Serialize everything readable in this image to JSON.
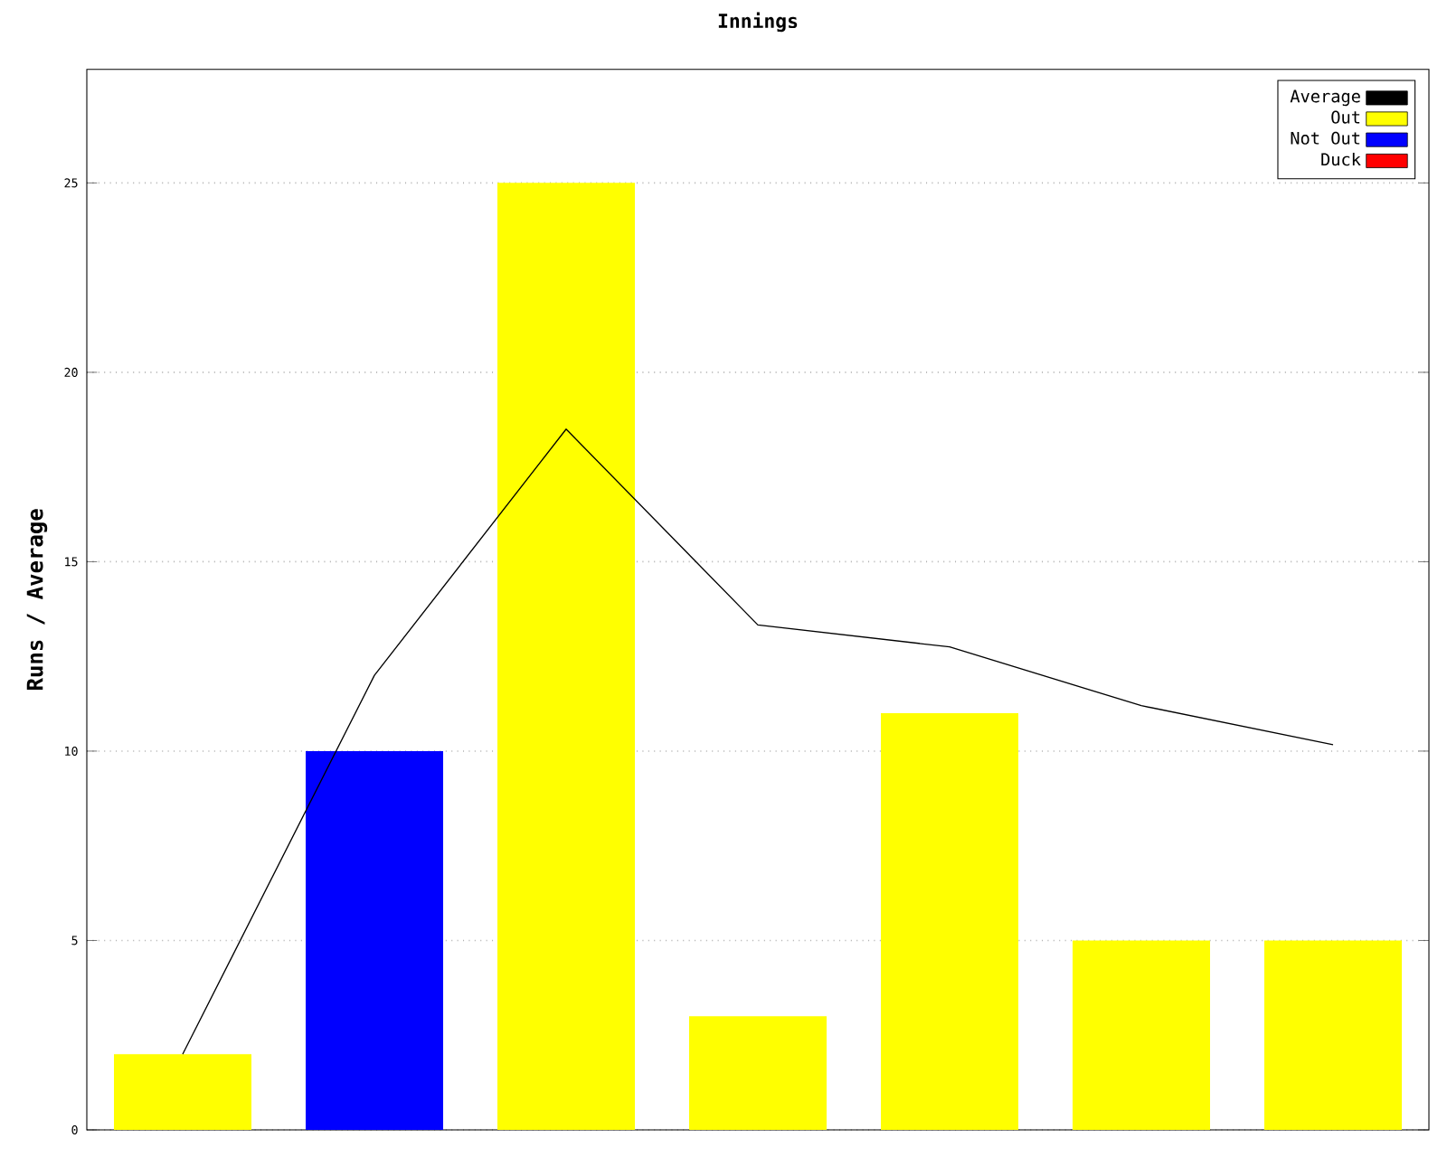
{
  "chart_data": {
    "type": "bar",
    "title": "Innings",
    "ylabel": "Runs / Average",
    "categories": [
      null,
      null,
      null,
      null,
      null,
      null,
      null
    ],
    "series": [
      {
        "name": "Average",
        "type": "line",
        "color": "#000000",
        "values": [
          2,
          12,
          18.5,
          13.33,
          12.75,
          11.2,
          10.17
        ]
      },
      {
        "name": "Out",
        "color": "#ffff00",
        "values": [
          2,
          null,
          25,
          3,
          11,
          5,
          5
        ]
      },
      {
        "name": "Not Out",
        "color": "#0000ff",
        "values": [
          null,
          10,
          null,
          null,
          null,
          null,
          null
        ]
      },
      {
        "name": "Duck",
        "color": "#ff0000",
        "values": [
          null,
          null,
          null,
          null,
          null,
          null,
          null
        ]
      }
    ],
    "ylim": [
      0,
      28
    ],
    "yticks": [
      0,
      5,
      10,
      15,
      20,
      25
    ],
    "grid": "y",
    "legend": "top right",
    "marker": "none"
  }
}
